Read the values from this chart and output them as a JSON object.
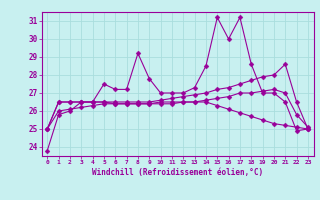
{
  "title": "",
  "xlabel": "Windchill (Refroidissement éolien,°C)",
  "ylabel": "",
  "bg_color": "#c8f0f0",
  "line_color": "#990099",
  "grid_color": "#aadddd",
  "axis_color": "#990099",
  "xlim": [
    -0.5,
    23.5
  ],
  "ylim": [
    23.5,
    31.5
  ],
  "xticks": [
    0,
    1,
    2,
    3,
    4,
    5,
    6,
    7,
    8,
    9,
    10,
    11,
    12,
    13,
    14,
    15,
    16,
    17,
    18,
    19,
    20,
    21,
    22,
    23
  ],
  "yticks": [
    24,
    25,
    26,
    27,
    28,
    29,
    30,
    31
  ],
  "line1": [
    23.8,
    25.8,
    26.0,
    26.5,
    26.5,
    27.5,
    27.2,
    27.2,
    29.2,
    27.8,
    27.0,
    27.0,
    27.0,
    27.3,
    28.5,
    31.2,
    30.0,
    31.2,
    28.6,
    27.0,
    27.0,
    26.5,
    24.9,
    25.0
  ],
  "line2": [
    25.0,
    26.5,
    26.5,
    26.5,
    26.5,
    26.5,
    26.5,
    26.5,
    26.5,
    26.5,
    26.6,
    26.7,
    26.8,
    26.9,
    27.0,
    27.2,
    27.3,
    27.5,
    27.7,
    27.9,
    28.0,
    28.6,
    26.5,
    25.0
  ],
  "line3": [
    25.0,
    26.5,
    26.5,
    26.5,
    26.5,
    26.5,
    26.4,
    26.4,
    26.4,
    26.4,
    26.4,
    26.4,
    26.5,
    26.5,
    26.6,
    26.7,
    26.8,
    27.0,
    27.0,
    27.1,
    27.2,
    27.0,
    25.8,
    25.1
  ],
  "line4": [
    25.0,
    26.0,
    26.1,
    26.2,
    26.3,
    26.4,
    26.4,
    26.4,
    26.4,
    26.4,
    26.5,
    26.5,
    26.5,
    26.5,
    26.5,
    26.3,
    26.1,
    25.9,
    25.7,
    25.5,
    25.3,
    25.2,
    25.1,
    25.0
  ]
}
